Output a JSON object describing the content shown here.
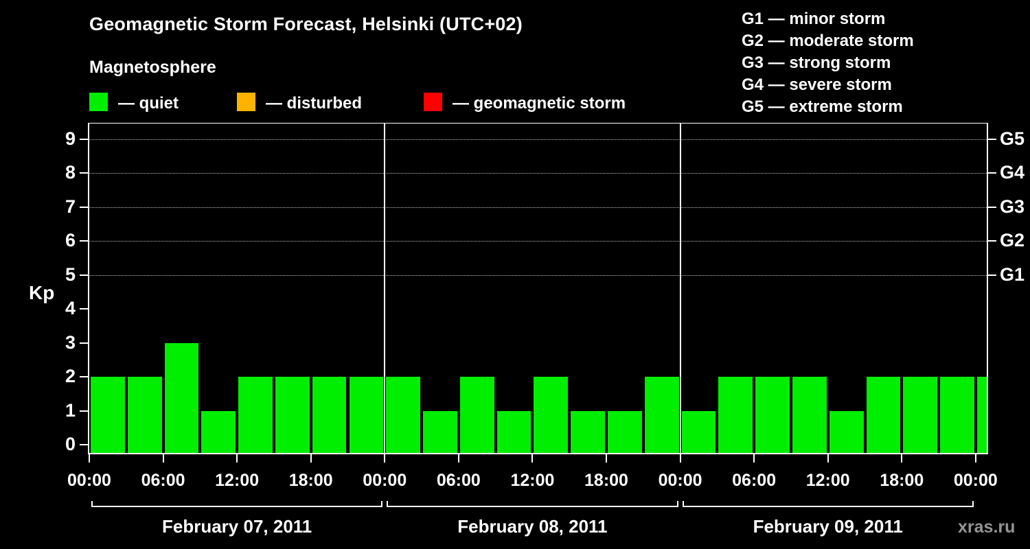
{
  "title": "Geomagnetic Storm Forecast, Helsinki (UTC+02)",
  "subtitle": "Magnetosphere",
  "legend": {
    "quiet": {
      "label": "— quiet",
      "color": "#00ee00"
    },
    "disturbed": {
      "label": "— disturbed",
      "color": "#ffb300"
    },
    "storm": {
      "label": "— geomagnetic storm",
      "color": "#ff0000"
    }
  },
  "g_legend": [
    "G1 — minor storm",
    "G2 — moderate storm",
    "G3 — strong storm",
    "G4 — severe storm",
    "G5 — extreme storm"
  ],
  "watermark": "xras.ru",
  "chart_data": {
    "type": "bar",
    "title": "Geomagnetic Storm Forecast, Helsinki (UTC+02)",
    "ylabel": "Kp",
    "ylim": [
      0,
      9
    ],
    "y_ticks": [
      0,
      1,
      2,
      3,
      4,
      5,
      6,
      7,
      8,
      9
    ],
    "grid_levels": [
      5,
      6,
      7,
      8,
      9
    ],
    "right_axis_labels": [
      "G1",
      "G2",
      "G3",
      "G4",
      "G5"
    ],
    "x_tick_labels": [
      "00:00",
      "06:00",
      "12:00",
      "18:00",
      "00:00",
      "06:00",
      "12:00",
      "18:00",
      "00:00",
      "06:00",
      "12:00",
      "18:00",
      "00:00"
    ],
    "interval_hours": 3,
    "days": [
      {
        "date": "February 07, 2011",
        "kp": [
          2,
          2,
          3,
          1,
          2,
          2,
          2,
          2
        ]
      },
      {
        "date": "February 08, 2011",
        "kp": [
          2,
          1,
          2,
          1,
          2,
          1,
          1,
          2
        ]
      },
      {
        "date": "February 09, 2011",
        "kp": [
          1,
          2,
          2,
          2,
          1,
          2,
          2,
          2
        ]
      }
    ],
    "extra_kp": [
      2
    ],
    "legend_position": "top",
    "grid": "dotted horizontal at G-levels only",
    "background": "#000000"
  }
}
